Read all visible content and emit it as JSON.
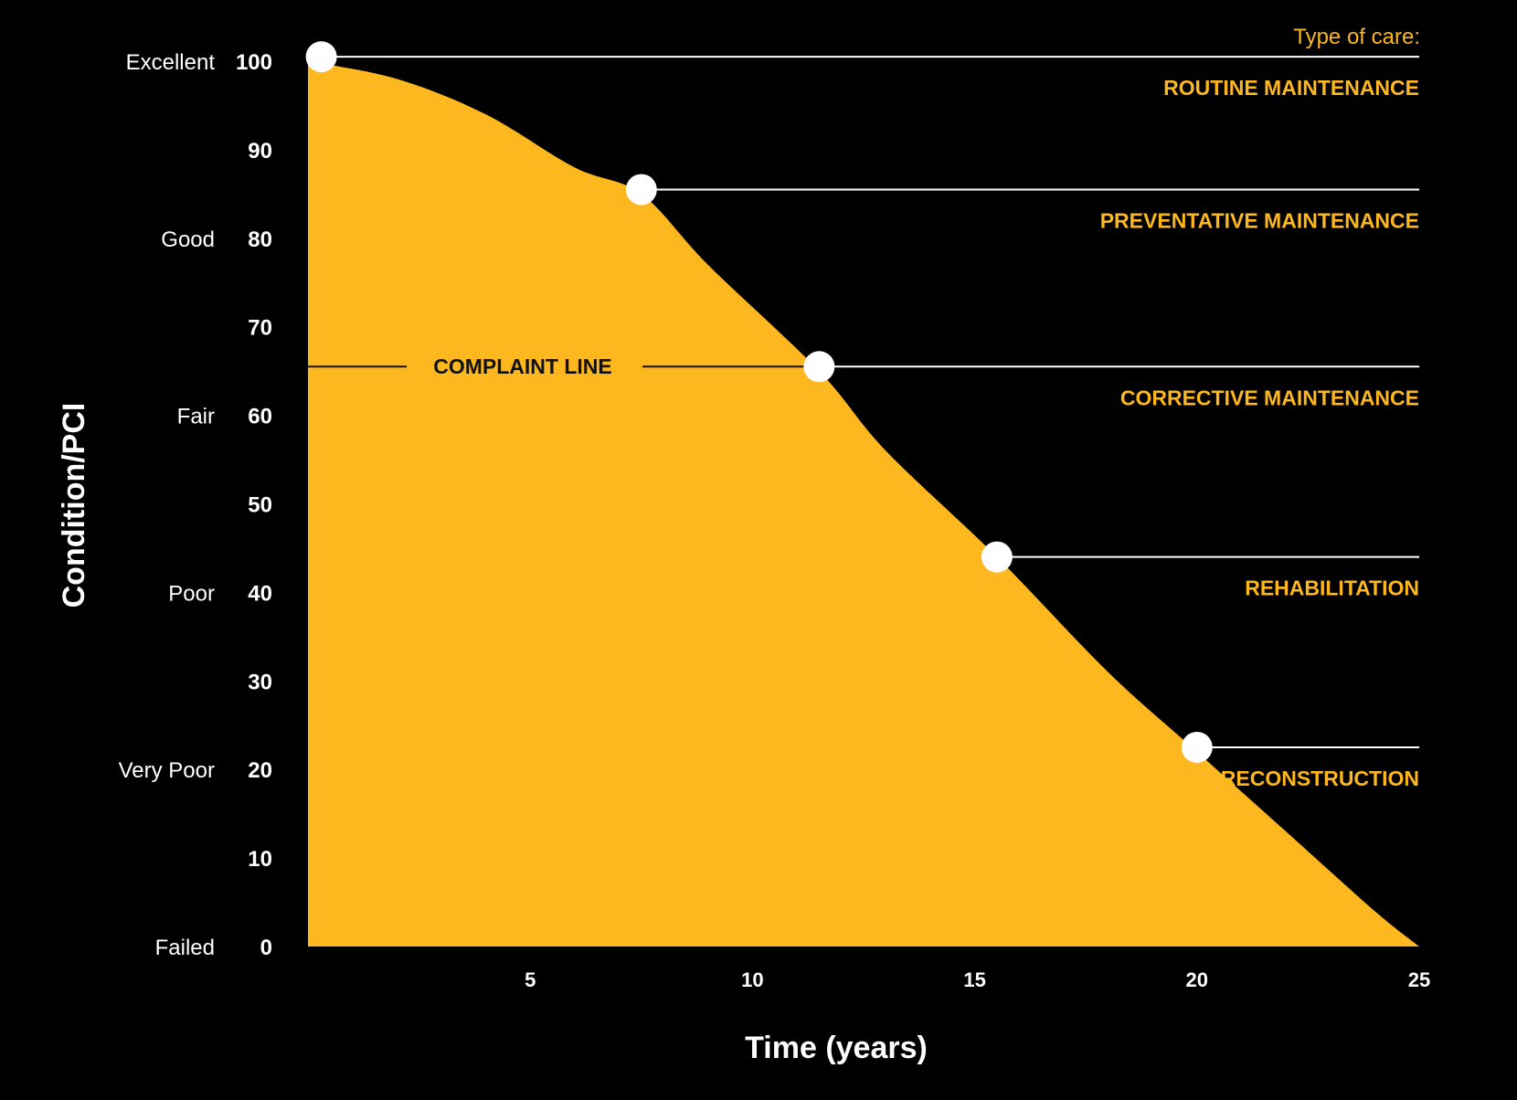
{
  "chart_data": {
    "type": "area",
    "xlabel": "Time (years)",
    "ylabel": "Condition/PCI",
    "xlim": [
      0,
      25
    ],
    "ylim": [
      0,
      100
    ],
    "x_ticks": [
      5,
      10,
      15,
      20,
      25
    ],
    "y_ticks": [
      100,
      90,
      80,
      70,
      60,
      50,
      40,
      30,
      20,
      10,
      0
    ],
    "condition_labels": [
      {
        "label": "Excellent",
        "value": 100
      },
      {
        "label": "Good",
        "value": 80
      },
      {
        "label": "Fair",
        "value": 60
      },
      {
        "label": "Poor",
        "value": 40
      },
      {
        "label": "Very Poor",
        "value": 20
      },
      {
        "label": "Failed",
        "value": 0
      }
    ],
    "curve": {
      "x": [
        0,
        2,
        4,
        6,
        7.5,
        9,
        11.5,
        13,
        15.5,
        18,
        20,
        22,
        24,
        25
      ],
      "y": [
        100,
        98,
        94,
        88,
        85,
        77,
        65,
        56,
        44,
        31,
        22,
        13,
        4,
        0
      ]
    },
    "care_title": "Type of care:",
    "care_stages": [
      {
        "label": "ROUTINE MAINTENANCE",
        "x": 0.3,
        "y": 100.5
      },
      {
        "label": "PREVENTATIVE MAINTENANCE",
        "x": 7.5,
        "y": 85.5
      },
      {
        "label": "CORRECTIVE MAINTENANCE",
        "x": 11.5,
        "y": 65.5
      },
      {
        "label": "REHABILITATION",
        "x": 15.5,
        "y": 44
      },
      {
        "label": "RECONSTRUCTION",
        "x": 20,
        "y": 22.5
      }
    ],
    "complaint_line": {
      "label": "COMPLAINT LINE",
      "y": 65.5
    },
    "colors": {
      "background": "#000000",
      "fill": "#FDB71F",
      "accent_text": "#FDB71F",
      "lines": "#ffffff",
      "markers": "#ffffff",
      "complaint_text": "#111111"
    }
  }
}
